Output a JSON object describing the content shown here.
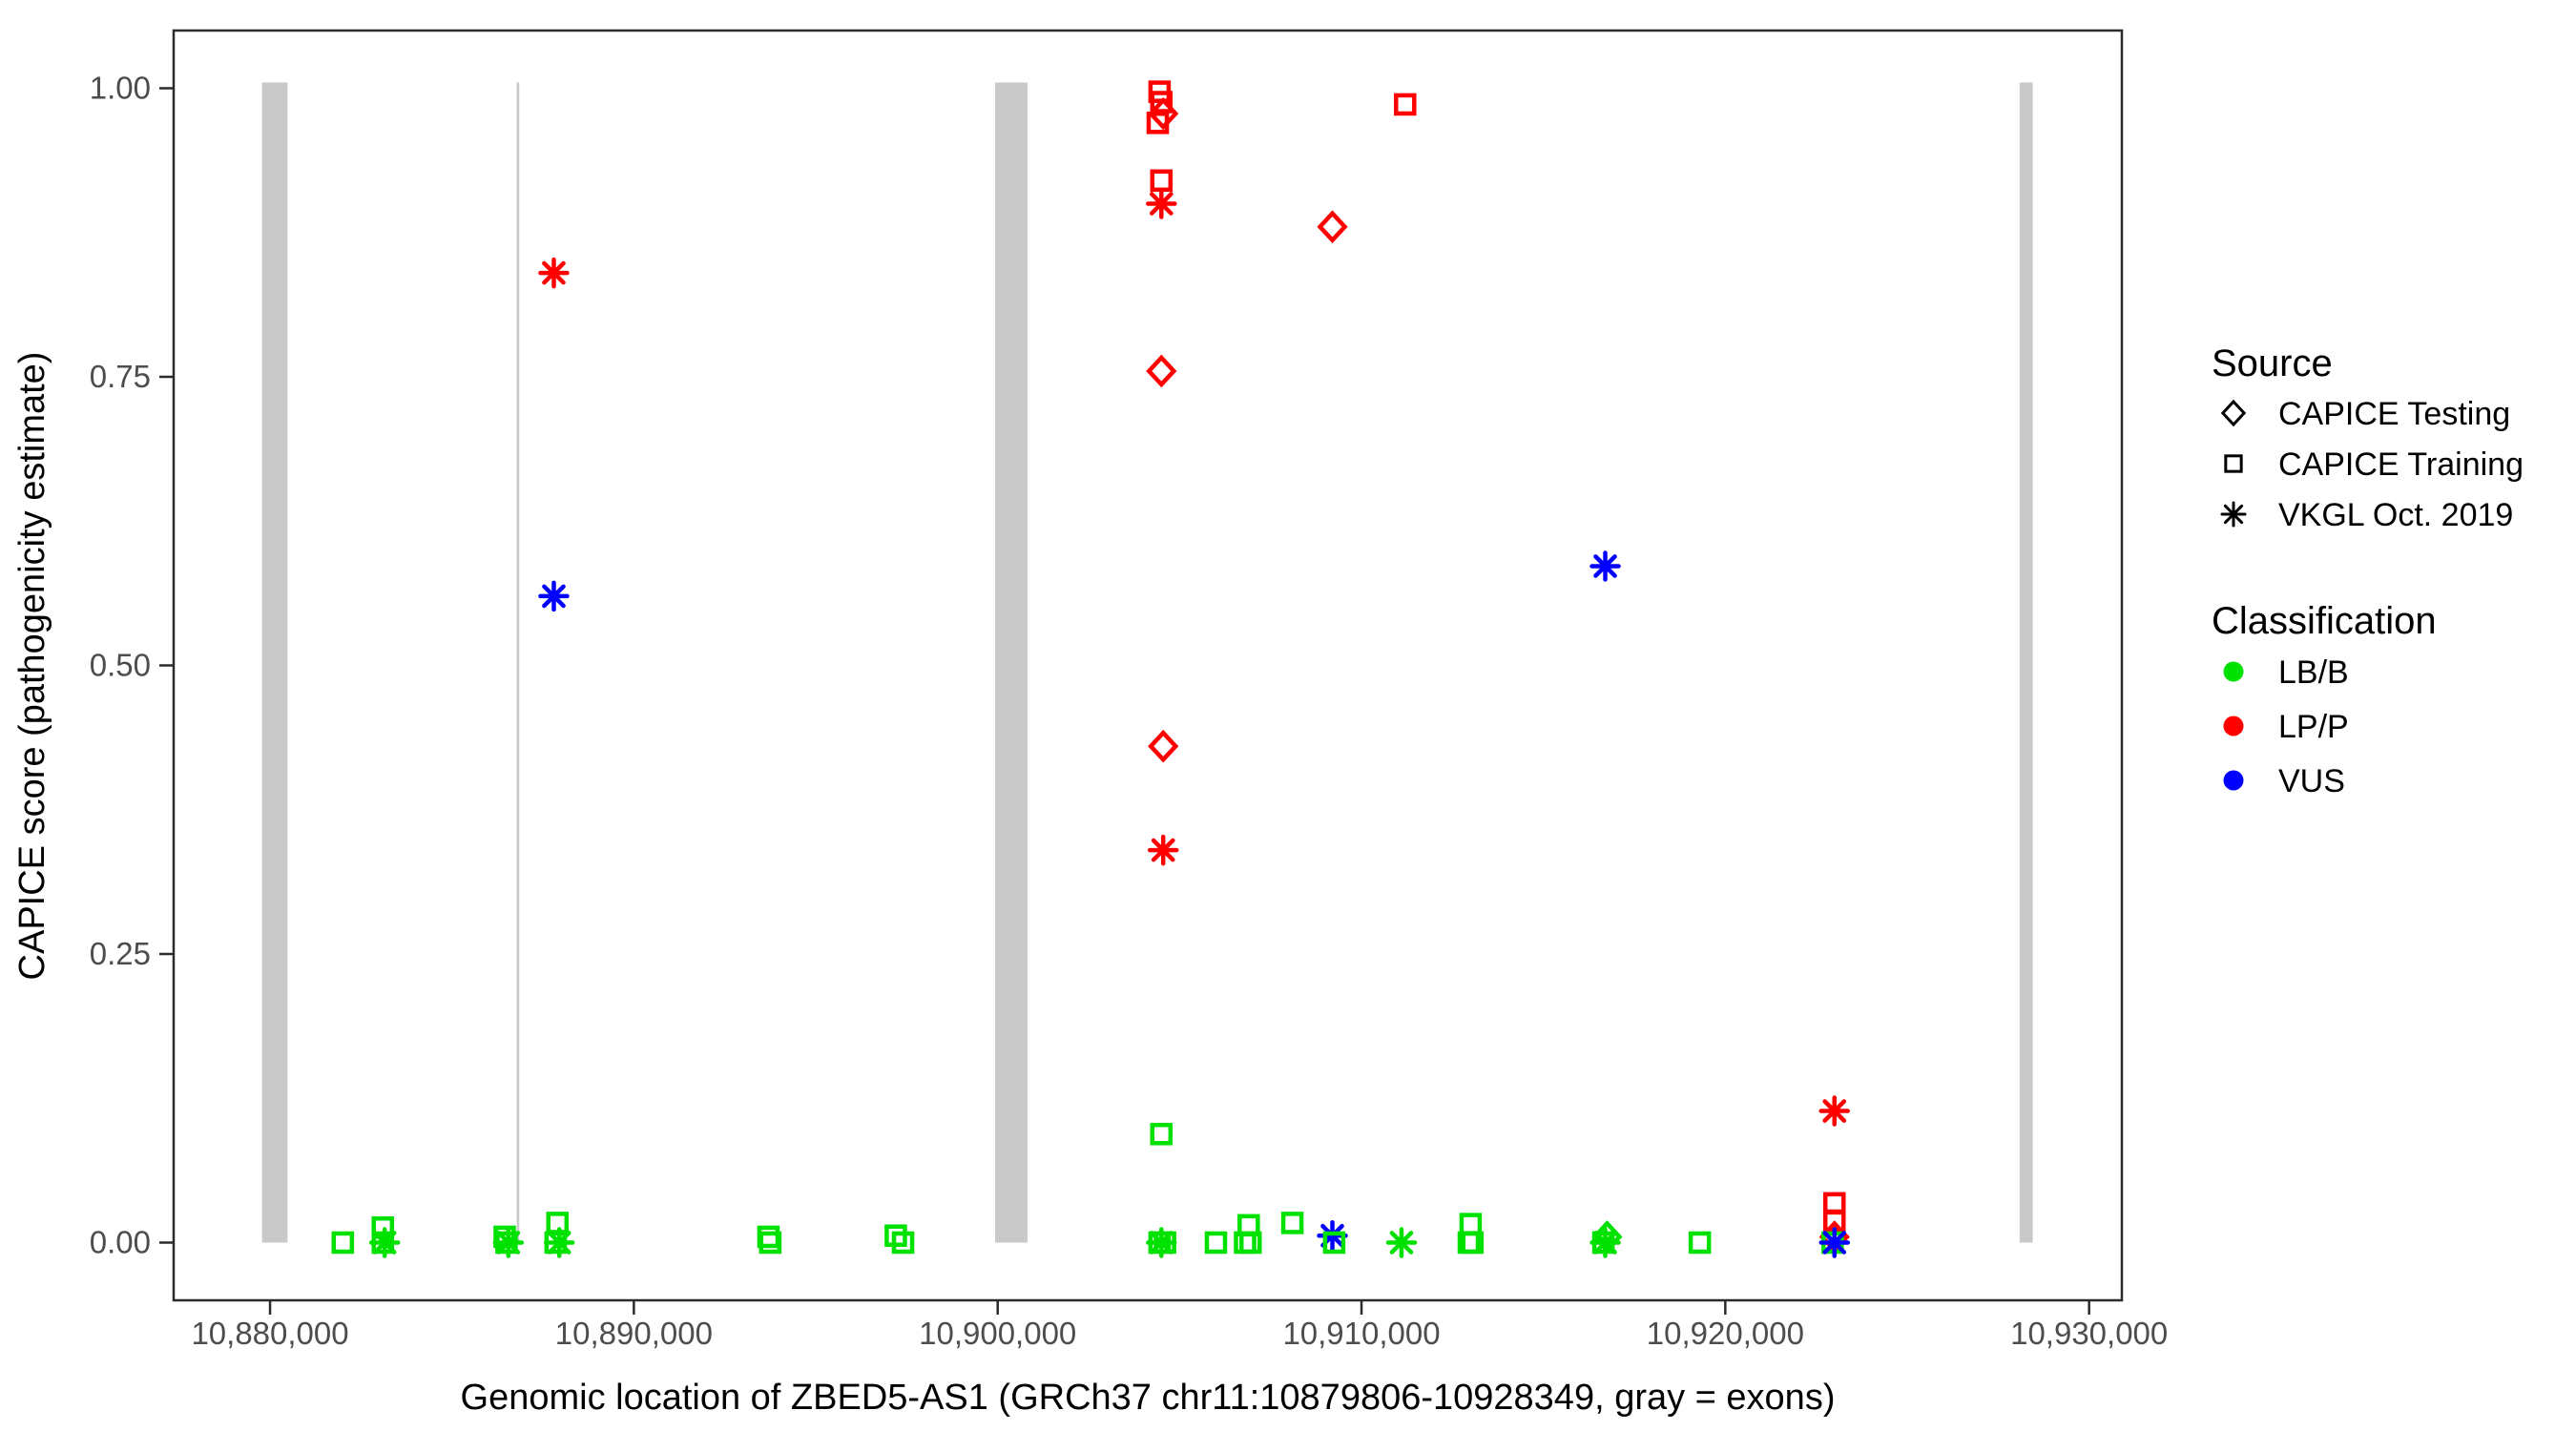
{
  "colors": {
    "lbb_green": "#00E100",
    "lpp_red": "#FF0000",
    "vus_blue": "#0000FF",
    "exon_gray": "#C9C9C9",
    "axis_text": "#4D4D4D",
    "axis_line": "#2B2B2B",
    "legend_symbol": "#000000"
  },
  "legend": {
    "source": {
      "title": "Source",
      "items": [
        {
          "label": "CAPICE Testing",
          "shape": "diamond"
        },
        {
          "label": "CAPICE Training",
          "shape": "square"
        },
        {
          "label": "VKGL Oct. 2019",
          "shape": "asterisk"
        }
      ]
    },
    "classification": {
      "title": "Classification",
      "items": [
        {
          "label": "LB/B",
          "color": "#00E100"
        },
        {
          "label": "LP/P",
          "color": "#FF0000"
        },
        {
          "label": "VUS",
          "color": "#0000FF"
        }
      ]
    }
  },
  "chart_data": {
    "type": "scatter",
    "title": "",
    "xlabel": "Genomic location of ZBED5-AS1 (GRCh37 chr11:10879806-10928349, gray = exons)",
    "ylabel": "CAPICE score (pathogenicity estimate)",
    "xlim": [
      10877350,
      10930900
    ],
    "ylim": [
      -0.05,
      1.05
    ],
    "grid": false,
    "legend_position": "right",
    "x_ticks": [
      {
        "value": 10880000,
        "label": "10,880,000"
      },
      {
        "value": 10890000,
        "label": "10,890,000"
      },
      {
        "value": 10900000,
        "label": "10,900,000"
      },
      {
        "value": 10910000,
        "label": "10,910,000"
      },
      {
        "value": 10920000,
        "label": "10,920,000"
      },
      {
        "value": 10930000,
        "label": "10,930,000"
      }
    ],
    "y_ticks": [
      {
        "value": 0.0,
        "label": "0.00"
      },
      {
        "value": 0.25,
        "label": "0.25"
      },
      {
        "value": 0.5,
        "label": "0.50"
      },
      {
        "value": 0.75,
        "label": "0.75"
      },
      {
        "value": 1.0,
        "label": "1.00"
      }
    ],
    "exons_bp": [
      [
        10879780,
        10880480
      ],
      [
        10886780,
        10886850
      ],
      [
        10899930,
        10900820
      ],
      [
        10928090,
        10928450
      ]
    ],
    "exon_score_span": [
      0.0,
      1.005
    ],
    "shape_map": {
      "CAPICE Testing": "diamond",
      "CAPICE Training": "square",
      "VKGL Oct. 2019": "asterisk"
    },
    "points": [
      {
        "x": 10882000,
        "y": 0.0,
        "source": "CAPICE Training",
        "classification": "LB/B"
      },
      {
        "x": 10883100,
        "y": 0.013,
        "source": "CAPICE Training",
        "classification": "LB/B"
      },
      {
        "x": 10883100,
        "y": 0.0,
        "source": "CAPICE Training",
        "classification": "LB/B"
      },
      {
        "x": 10883150,
        "y": 0.0,
        "source": "VKGL Oct. 2019",
        "classification": "LB/B"
      },
      {
        "x": 10886450,
        "y": 0.005,
        "source": "CAPICE Training",
        "classification": "LB/B"
      },
      {
        "x": 10886500,
        "y": 0.0,
        "source": "CAPICE Training",
        "classification": "LB/B"
      },
      {
        "x": 10886550,
        "y": 0.0,
        "source": "VKGL Oct. 2019",
        "classification": "LB/B"
      },
      {
        "x": 10887900,
        "y": 0.017,
        "source": "CAPICE Training",
        "classification": "LB/B"
      },
      {
        "x": 10887850,
        "y": 0.0,
        "source": "CAPICE Training",
        "classification": "LB/B"
      },
      {
        "x": 10887950,
        "y": 0.0,
        "source": "VKGL Oct. 2019",
        "classification": "LB/B"
      },
      {
        "x": 10887800,
        "y": 0.84,
        "source": "VKGL Oct. 2019",
        "classification": "LP/P"
      },
      {
        "x": 10887800,
        "y": 0.56,
        "source": "VKGL Oct. 2019",
        "classification": "VUS"
      },
      {
        "x": 10893700,
        "y": 0.005,
        "source": "CAPICE Training",
        "classification": "LB/B"
      },
      {
        "x": 10893750,
        "y": 0.0,
        "source": "CAPICE Training",
        "classification": "LB/B"
      },
      {
        "x": 10897200,
        "y": 0.006,
        "source": "CAPICE Training",
        "classification": "LB/B"
      },
      {
        "x": 10897400,
        "y": 0.0,
        "source": "CAPICE Training",
        "classification": "LB/B"
      },
      {
        "x": 10904450,
        "y": 0.997,
        "source": "CAPICE Training",
        "classification": "LP/P"
      },
      {
        "x": 10904500,
        "y": 0.988,
        "source": "CAPICE Training",
        "classification": "LP/P"
      },
      {
        "x": 10904550,
        "y": 0.978,
        "source": "CAPICE Testing",
        "classification": "LP/P"
      },
      {
        "x": 10904400,
        "y": 0.97,
        "source": "CAPICE Training",
        "classification": "LP/P"
      },
      {
        "x": 10904500,
        "y": 0.92,
        "source": "CAPICE Training",
        "classification": "LP/P"
      },
      {
        "x": 10904500,
        "y": 0.9,
        "source": "VKGL Oct. 2019",
        "classification": "LP/P"
      },
      {
        "x": 10904500,
        "y": 0.755,
        "source": "CAPICE Testing",
        "classification": "LP/P"
      },
      {
        "x": 10904550,
        "y": 0.43,
        "source": "CAPICE Testing",
        "classification": "LP/P"
      },
      {
        "x": 10904550,
        "y": 0.34,
        "source": "VKGL Oct. 2019",
        "classification": "LP/P"
      },
      {
        "x": 10904500,
        "y": 0.094,
        "source": "CAPICE Training",
        "classification": "LB/B"
      },
      {
        "x": 10904450,
        "y": 0.0,
        "source": "CAPICE Training",
        "classification": "LB/B"
      },
      {
        "x": 10904600,
        "y": 0.0,
        "source": "CAPICE Training",
        "classification": "LB/B"
      },
      {
        "x": 10904500,
        "y": 0.0,
        "source": "VKGL Oct. 2019",
        "classification": "LB/B"
      },
      {
        "x": 10906000,
        "y": 0.0,
        "source": "CAPICE Training",
        "classification": "LB/B"
      },
      {
        "x": 10906900,
        "y": 0.015,
        "source": "CAPICE Training",
        "classification": "LB/B"
      },
      {
        "x": 10906800,
        "y": 0.0,
        "source": "CAPICE Training",
        "classification": "LB/B"
      },
      {
        "x": 10906950,
        "y": 0.0,
        "source": "CAPICE Training",
        "classification": "LB/B"
      },
      {
        "x": 10908100,
        "y": 0.017,
        "source": "CAPICE Training",
        "classification": "LB/B"
      },
      {
        "x": 10909200,
        "y": 0.88,
        "source": "CAPICE Testing",
        "classification": "LP/P"
      },
      {
        "x": 10909200,
        "y": 0.006,
        "source": "VKGL Oct. 2019",
        "classification": "VUS"
      },
      {
        "x": 10909250,
        "y": 0.0,
        "source": "CAPICE Training",
        "classification": "LB/B"
      },
      {
        "x": 10911200,
        "y": 0.986,
        "source": "CAPICE Training",
        "classification": "LP/P"
      },
      {
        "x": 10911100,
        "y": 0.0,
        "source": "VKGL Oct. 2019",
        "classification": "LB/B"
      },
      {
        "x": 10913000,
        "y": 0.016,
        "source": "CAPICE Training",
        "classification": "LB/B"
      },
      {
        "x": 10912950,
        "y": 0.0,
        "source": "CAPICE Training",
        "classification": "LB/B"
      },
      {
        "x": 10913050,
        "y": 0.0,
        "source": "CAPICE Training",
        "classification": "LB/B"
      },
      {
        "x": 10916700,
        "y": 0.586,
        "source": "VKGL Oct. 2019",
        "classification": "VUS"
      },
      {
        "x": 10916650,
        "y": 0.0,
        "source": "CAPICE Training",
        "classification": "LB/B"
      },
      {
        "x": 10916700,
        "y": 0.0,
        "source": "VKGL Oct. 2019",
        "classification": "LB/B"
      },
      {
        "x": 10916750,
        "y": 0.005,
        "source": "CAPICE Testing",
        "classification": "LB/B"
      },
      {
        "x": 10919300,
        "y": 0.0,
        "source": "CAPICE Training",
        "classification": "LB/B"
      },
      {
        "x": 10923000,
        "y": 0.114,
        "source": "VKGL Oct. 2019",
        "classification": "LP/P"
      },
      {
        "x": 10923000,
        "y": 0.034,
        "source": "CAPICE Training",
        "classification": "LP/P"
      },
      {
        "x": 10923000,
        "y": 0.019,
        "source": "CAPICE Training",
        "classification": "LP/P"
      },
      {
        "x": 10923000,
        "y": 0.005,
        "source": "CAPICE Testing",
        "classification": "LP/P"
      },
      {
        "x": 10922950,
        "y": 0.0,
        "source": "CAPICE Training",
        "classification": "LB/B"
      },
      {
        "x": 10923000,
        "y": 0.0,
        "source": "VKGL Oct. 2019",
        "classification": "VUS"
      }
    ]
  }
}
